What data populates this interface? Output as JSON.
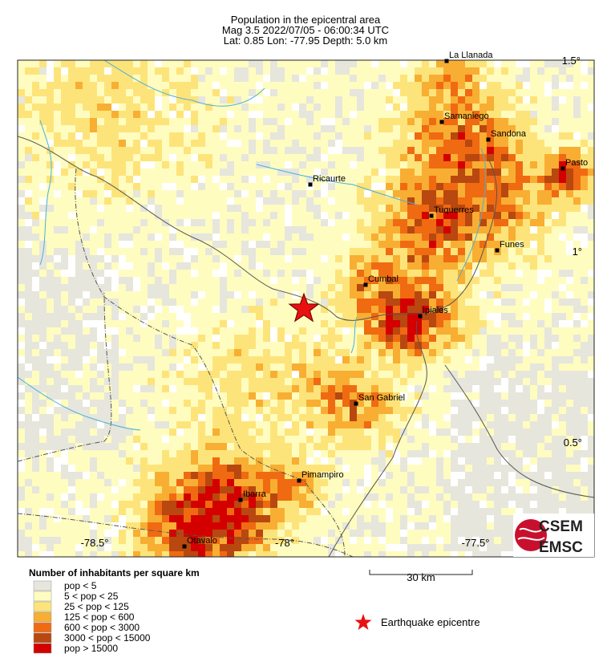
{
  "header": {
    "title": "Population in the epicentral area",
    "line2": "Mag 3.5  2022/07/05 - 06:00:34 UTC",
    "line3": "Lat:  0.85    Lon: -77.95     Depth:  5.0 km"
  },
  "map": {
    "lon_labels": [
      "-78.5°",
      "-78°",
      "-77.5°"
    ],
    "lat_labels": [
      "1.5°",
      "1°",
      "0.5°"
    ],
    "towns": [
      "La Llanada",
      "Samaniego",
      "Sandona",
      "Pasto",
      "Ricaurte",
      "Tuquerres",
      "Funes",
      "Cumbal",
      "Ipiales",
      "San Gabriel",
      "Pimampiro",
      "Ibarra",
      "Otavalo"
    ]
  },
  "legend": {
    "title": "Number of inhabitants per square km",
    "items": [
      {
        "label": "pop < 5",
        "color": "#e6e6dc"
      },
      {
        "label": "5 < pop < 25",
        "color": "#fffcc0"
      },
      {
        "label": "25 < pop < 125",
        "color": "#fde47a"
      },
      {
        "label": "125 < pop < 600",
        "color": "#f8ae32"
      },
      {
        "label": "600 < pop < 3000",
        "color": "#f06a12"
      },
      {
        "label": "3000 < pop < 15000",
        "color": "#b8480f"
      },
      {
        "label": "pop > 15000",
        "color": "#d40000"
      }
    ]
  },
  "scale_bar": "30 km",
  "epicentre_label": "Earthquake epicentre",
  "logo": {
    "top": "CSEM",
    "bottom": "EMSC"
  }
}
